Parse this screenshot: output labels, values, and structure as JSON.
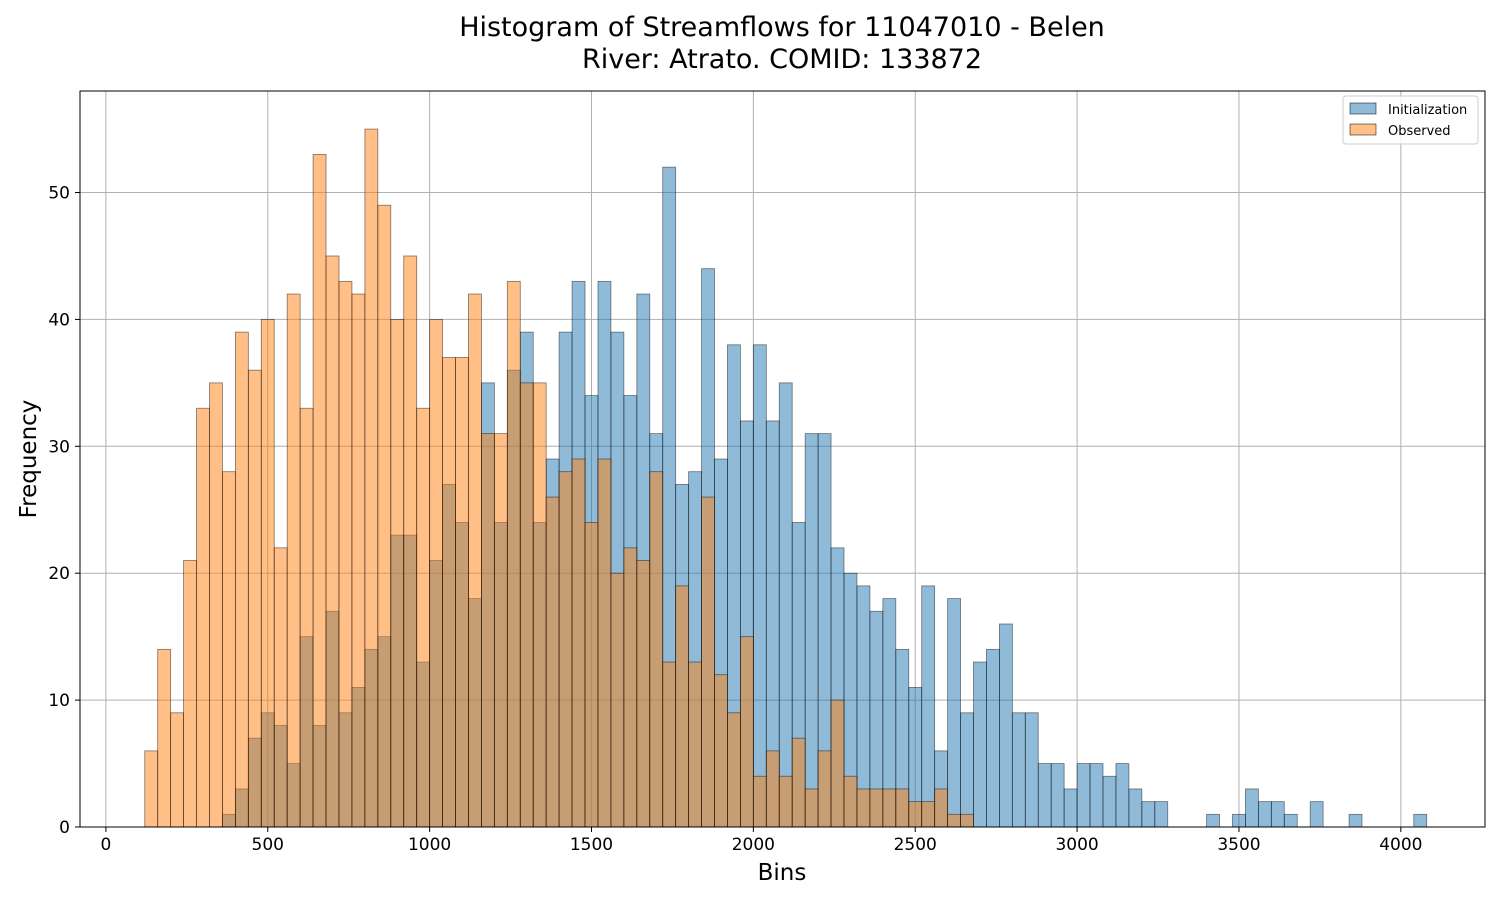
{
  "chart_data": {
    "type": "bar",
    "title": "Histogram of Streamflows for 11047010 - Belen",
    "subtitle": "River: Atrato. COMID: 133872",
    "xlabel": "Bins",
    "ylabel": "Frequency",
    "xlim": [
      -80,
      4260
    ],
    "ylim": [
      0,
      58
    ],
    "x_ticks": [
      0,
      500,
      1000,
      1500,
      2000,
      2500,
      3000,
      3500,
      4000
    ],
    "y_ticks": [
      0,
      10,
      20,
      30,
      40,
      50
    ],
    "grid": true,
    "legend_position": "top-right",
    "bin_width": 40,
    "series": [
      {
        "name": "Initialization",
        "color": "#1f77b4",
        "bins": [
          {
            "x": 360,
            "count": 1
          },
          {
            "x": 400,
            "count": 3
          },
          {
            "x": 440,
            "count": 7
          },
          {
            "x": 480,
            "count": 9
          },
          {
            "x": 520,
            "count": 8
          },
          {
            "x": 560,
            "count": 5
          },
          {
            "x": 600,
            "count": 15
          },
          {
            "x": 640,
            "count": 8
          },
          {
            "x": 680,
            "count": 17
          },
          {
            "x": 720,
            "count": 9
          },
          {
            "x": 760,
            "count": 11
          },
          {
            "x": 800,
            "count": 14
          },
          {
            "x": 840,
            "count": 15
          },
          {
            "x": 880,
            "count": 23
          },
          {
            "x": 920,
            "count": 23
          },
          {
            "x": 960,
            "count": 13
          },
          {
            "x": 1000,
            "count": 21
          },
          {
            "x": 1040,
            "count": 27
          },
          {
            "x": 1080,
            "count": 24
          },
          {
            "x": 1120,
            "count": 18
          },
          {
            "x": 1160,
            "count": 35
          },
          {
            "x": 1200,
            "count": 24
          },
          {
            "x": 1240,
            "count": 36
          },
          {
            "x": 1280,
            "count": 39
          },
          {
            "x": 1320,
            "count": 24
          },
          {
            "x": 1360,
            "count": 29
          },
          {
            "x": 1400,
            "count": 39
          },
          {
            "x": 1440,
            "count": 43
          },
          {
            "x": 1480,
            "count": 34
          },
          {
            "x": 1520,
            "count": 43
          },
          {
            "x": 1560,
            "count": 39
          },
          {
            "x": 1600,
            "count": 34
          },
          {
            "x": 1640,
            "count": 42
          },
          {
            "x": 1680,
            "count": 31
          },
          {
            "x": 1720,
            "count": 52
          },
          {
            "x": 1760,
            "count": 27
          },
          {
            "x": 1800,
            "count": 28
          },
          {
            "x": 1840,
            "count": 44
          },
          {
            "x": 1880,
            "count": 29
          },
          {
            "x": 1920,
            "count": 38
          },
          {
            "x": 1960,
            "count": 32
          },
          {
            "x": 2000,
            "count": 38
          },
          {
            "x": 2040,
            "count": 32
          },
          {
            "x": 2080,
            "count": 35
          },
          {
            "x": 2120,
            "count": 24
          },
          {
            "x": 2160,
            "count": 31
          },
          {
            "x": 2200,
            "count": 31
          },
          {
            "x": 2240,
            "count": 22
          },
          {
            "x": 2280,
            "count": 20
          },
          {
            "x": 2320,
            "count": 19
          },
          {
            "x": 2360,
            "count": 17
          },
          {
            "x": 2400,
            "count": 18
          },
          {
            "x": 2440,
            "count": 14
          },
          {
            "x": 2480,
            "count": 11
          },
          {
            "x": 2520,
            "count": 19
          },
          {
            "x": 2560,
            "count": 6
          },
          {
            "x": 2600,
            "count": 18
          },
          {
            "x": 2640,
            "count": 9
          },
          {
            "x": 2680,
            "count": 13
          },
          {
            "x": 2720,
            "count": 14
          },
          {
            "x": 2760,
            "count": 16
          },
          {
            "x": 2800,
            "count": 9
          },
          {
            "x": 2840,
            "count": 9
          },
          {
            "x": 2880,
            "count": 5
          },
          {
            "x": 2920,
            "count": 5
          },
          {
            "x": 2960,
            "count": 3
          },
          {
            "x": 3000,
            "count": 5
          },
          {
            "x": 3040,
            "count": 5
          },
          {
            "x": 3080,
            "count": 4
          },
          {
            "x": 3120,
            "count": 5
          },
          {
            "x": 3160,
            "count": 3
          },
          {
            "x": 3200,
            "count": 2
          },
          {
            "x": 3240,
            "count": 2
          },
          {
            "x": 3400,
            "count": 1
          },
          {
            "x": 3480,
            "count": 1
          },
          {
            "x": 3520,
            "count": 3
          },
          {
            "x": 3560,
            "count": 2
          },
          {
            "x": 3600,
            "count": 2
          },
          {
            "x": 3640,
            "count": 1
          },
          {
            "x": 3720,
            "count": 2
          },
          {
            "x": 3840,
            "count": 1
          },
          {
            "x": 4040,
            "count": 1
          }
        ]
      },
      {
        "name": "Observed",
        "color": "#ff7f0e",
        "bins": [
          {
            "x": 120,
            "count": 6
          },
          {
            "x": 160,
            "count": 14
          },
          {
            "x": 200,
            "count": 9
          },
          {
            "x": 240,
            "count": 21
          },
          {
            "x": 280,
            "count": 33
          },
          {
            "x": 320,
            "count": 35
          },
          {
            "x": 360,
            "count": 28
          },
          {
            "x": 400,
            "count": 39
          },
          {
            "x": 440,
            "count": 36
          },
          {
            "x": 480,
            "count": 40
          },
          {
            "x": 520,
            "count": 22
          },
          {
            "x": 560,
            "count": 42
          },
          {
            "x": 600,
            "count": 33
          },
          {
            "x": 640,
            "count": 53
          },
          {
            "x": 680,
            "count": 45
          },
          {
            "x": 720,
            "count": 43
          },
          {
            "x": 760,
            "count": 42
          },
          {
            "x": 800,
            "count": 55
          },
          {
            "x": 840,
            "count": 49
          },
          {
            "x": 880,
            "count": 40
          },
          {
            "x": 920,
            "count": 45
          },
          {
            "x": 960,
            "count": 33
          },
          {
            "x": 1000,
            "count": 40
          },
          {
            "x": 1040,
            "count": 37
          },
          {
            "x": 1080,
            "count": 37
          },
          {
            "x": 1120,
            "count": 42
          },
          {
            "x": 1160,
            "count": 31
          },
          {
            "x": 1200,
            "count": 31
          },
          {
            "x": 1240,
            "count": 43
          },
          {
            "x": 1280,
            "count": 35
          },
          {
            "x": 1320,
            "count": 35
          },
          {
            "x": 1360,
            "count": 26
          },
          {
            "x": 1400,
            "count": 28
          },
          {
            "x": 1440,
            "count": 29
          },
          {
            "x": 1480,
            "count": 24
          },
          {
            "x": 1520,
            "count": 29
          },
          {
            "x": 1560,
            "count": 20
          },
          {
            "x": 1600,
            "count": 22
          },
          {
            "x": 1640,
            "count": 21
          },
          {
            "x": 1680,
            "count": 28
          },
          {
            "x": 1720,
            "count": 13
          },
          {
            "x": 1760,
            "count": 19
          },
          {
            "x": 1800,
            "count": 13
          },
          {
            "x": 1840,
            "count": 26
          },
          {
            "x": 1880,
            "count": 12
          },
          {
            "x": 1920,
            "count": 9
          },
          {
            "x": 1960,
            "count": 15
          },
          {
            "x": 2000,
            "count": 4
          },
          {
            "x": 2040,
            "count": 6
          },
          {
            "x": 2080,
            "count": 4
          },
          {
            "x": 2120,
            "count": 7
          },
          {
            "x": 2160,
            "count": 3
          },
          {
            "x": 2200,
            "count": 6
          },
          {
            "x": 2240,
            "count": 10
          },
          {
            "x": 2280,
            "count": 4
          },
          {
            "x": 2320,
            "count": 3
          },
          {
            "x": 2360,
            "count": 3
          },
          {
            "x": 2400,
            "count": 3
          },
          {
            "x": 2440,
            "count": 3
          },
          {
            "x": 2480,
            "count": 2
          },
          {
            "x": 2520,
            "count": 2
          },
          {
            "x": 2560,
            "count": 3
          },
          {
            "x": 2600,
            "count": 1
          },
          {
            "x": 2640,
            "count": 1
          }
        ]
      }
    ]
  }
}
